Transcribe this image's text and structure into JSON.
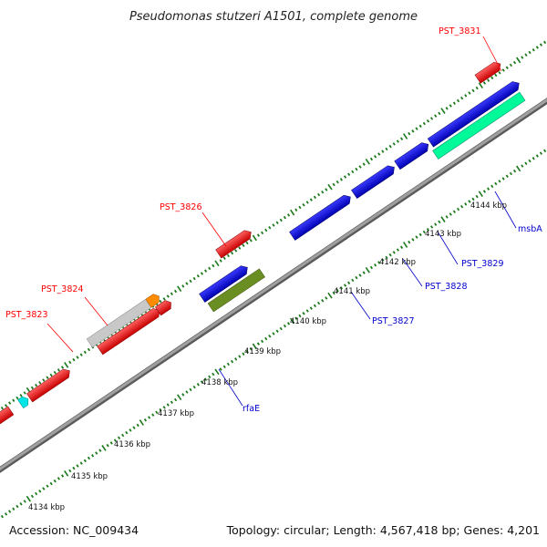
{
  "title": "Pseudomonas stutzeri A1501, complete genome",
  "footer": {
    "accession": "Accession: NC_009434",
    "topology": "Topology: circular; Length: 4,567,418 bp; Genes: 4,201"
  },
  "tick_labels": [
    "4134 kbp",
    "4135 kbp",
    "4136 kbp",
    "4137 kbp",
    "4138 kbp",
    "4139 kbp",
    "4140 kbp",
    "4141 kbp",
    "4142 kbp",
    "4143 kbp",
    "4144 kbp"
  ],
  "gene_labels": {
    "pst3823": "PST_3823",
    "pst3824": "PST_3824",
    "pst3826": "PST_3826",
    "pst3831": "PST_3831",
    "rfaE": "rfaE",
    "pst3827": "PST_3827",
    "pst3828": "PST_3828",
    "pst3829": "PST_3829",
    "msbA": "msbA"
  },
  "colors": {
    "red": "#ff0000",
    "blue": "#0000ee",
    "green": "#6b8e23",
    "teal": "#00fa9a",
    "gray": "#c8c8c8",
    "orange": "#ff8c00",
    "cyan": "#00e5e5",
    "backbone": "#808080",
    "tick": "#1a7a1a"
  }
}
